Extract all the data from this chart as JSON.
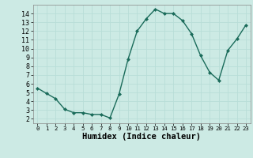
{
  "x": [
    0,
    1,
    2,
    3,
    4,
    5,
    6,
    7,
    8,
    9,
    10,
    11,
    12,
    13,
    14,
    15,
    16,
    17,
    18,
    19,
    20,
    21,
    22,
    23
  ],
  "y": [
    5.5,
    4.9,
    4.3,
    3.1,
    2.7,
    2.7,
    2.5,
    2.5,
    2.1,
    4.8,
    8.8,
    12.0,
    13.4,
    14.5,
    14.0,
    14.0,
    13.2,
    11.7,
    9.2,
    7.3,
    6.4,
    9.8,
    11.1,
    12.7
  ],
  "line_color": "#1a6b5a",
  "marker": "D",
  "marker_size": 2.0,
  "xlabel": "Humidex (Indice chaleur)",
  "xlabel_fontsize": 7.5,
  "xlim": [
    -0.5,
    23.5
  ],
  "ylim": [
    1.5,
    15.0
  ],
  "yticks": [
    2,
    3,
    4,
    5,
    6,
    7,
    8,
    9,
    10,
    11,
    12,
    13,
    14
  ],
  "xticks": [
    0,
    1,
    2,
    3,
    4,
    5,
    6,
    7,
    8,
    9,
    10,
    11,
    12,
    13,
    14,
    15,
    16,
    17,
    18,
    19,
    20,
    21,
    22,
    23
  ],
  "grid_color": "#b8ddd8",
  "background_color": "#cceae4",
  "line_width": 1.0,
  "tick_fontsize": 6.0,
  "xtick_fontsize": 5.2
}
